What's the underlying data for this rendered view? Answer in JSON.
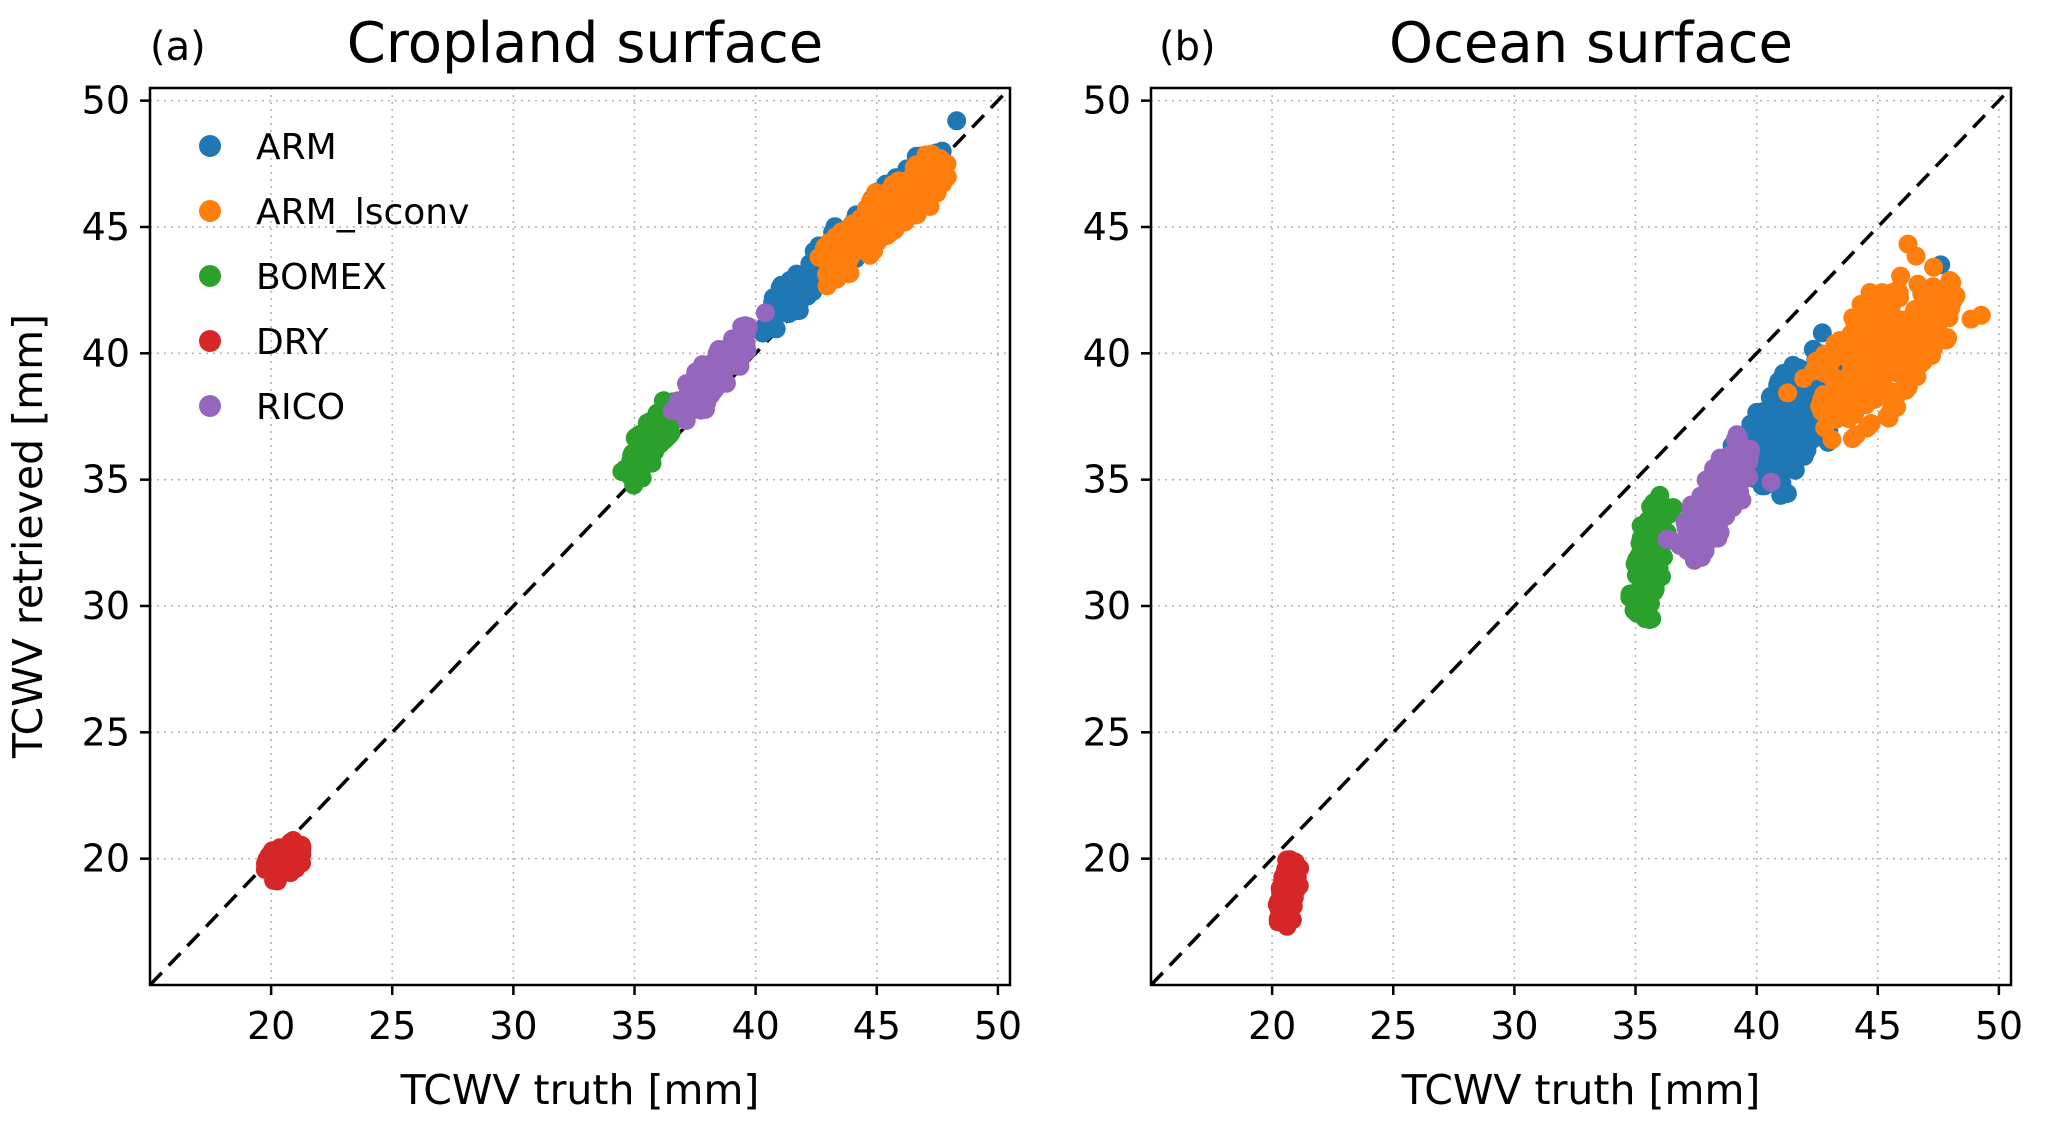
{
  "chart_data": [
    {
      "type": "scatter",
      "panel_label": "(a)",
      "title": "Cropland surface",
      "xlabel": "TCWV truth [mm]",
      "ylabel": "TCWV retrieved [mm]",
      "xlim": [
        15,
        50.5
      ],
      "ylim": [
        15,
        50.5
      ],
      "xticks": [
        20,
        25,
        30,
        35,
        40,
        45,
        50
      ],
      "yticks": [
        20,
        25,
        30,
        35,
        40,
        45,
        50
      ],
      "grid": "dotted",
      "identity_line": true,
      "legend": {
        "visible": true,
        "position": "upper left"
      },
      "series": [
        {
          "name": "ARM",
          "color": "#1f77b4",
          "clusters": [
            {
              "n": 130,
              "cx": 42.5,
              "cy": 43.2,
              "sx": 1.3,
              "sy": 0.33,
              "rot": 45
            },
            {
              "n": 90,
              "cx": 45.8,
              "cy": 46.3,
              "sx": 1.1,
              "sy": 0.3,
              "rot": 45
            }
          ],
          "points": [
            [
              48.3,
              49.2
            ],
            [
              47.7,
              48.0
            ],
            [
              40.3,
              40.8
            ]
          ]
        },
        {
          "name": "ARM_lsconv",
          "color": "#ff7f0e",
          "clusters": [
            {
              "n": 260,
              "cx": 45.3,
              "cy": 45.4,
              "sx": 1.5,
              "sy": 0.42,
              "rot": 40
            }
          ],
          "points": [
            [
              47.9,
              47.5
            ]
          ]
        },
        {
          "name": "BOMEX",
          "color": "#2ca02c",
          "clusters": [
            {
              "n": 170,
              "cx": 35.7,
              "cy": 36.6,
              "sx": 0.85,
              "sy": 0.25,
              "rot": 58
            }
          ],
          "points": []
        },
        {
          "name": "DRY",
          "color": "#d62728",
          "clusters": [
            {
              "n": 110,
              "cx": 20.6,
              "cy": 20.0,
              "sx": 0.4,
              "sy": 0.25,
              "rot": 35
            }
          ],
          "points": []
        },
        {
          "name": "RICO",
          "color": "#9467bd",
          "clusters": [
            {
              "n": 170,
              "cx": 38.3,
              "cy": 39.2,
              "sx": 1.0,
              "sy": 0.28,
              "rot": 50
            }
          ],
          "points": [
            [
              40.4,
              41.6
            ]
          ]
        }
      ]
    },
    {
      "type": "scatter",
      "panel_label": "(b)",
      "title": "Ocean surface",
      "xlabel": "TCWV truth [mm]",
      "ylabel": "",
      "xlim": [
        15,
        50.5
      ],
      "ylim": [
        15,
        50.5
      ],
      "xticks": [
        20,
        25,
        30,
        35,
        40,
        45,
        50
      ],
      "yticks": [
        20,
        25,
        30,
        35,
        40,
        45,
        50
      ],
      "grid": "dotted",
      "identity_line": true,
      "legend": {
        "visible": false,
        "position": ""
      },
      "series": [
        {
          "name": "ARM",
          "color": "#1f77b4",
          "clusters": [
            {
              "n": 200,
              "cx": 41.7,
              "cy": 37.5,
              "sx": 1.6,
              "sy": 0.7,
              "rot": 55
            }
          ],
          "points": [
            [
              47.6,
              43.5
            ]
          ]
        },
        {
          "name": "ARM_lsconv",
          "color": "#ff7f0e",
          "clusters": [
            {
              "n": 300,
              "cx": 45.3,
              "cy": 40.0,
              "sx": 1.7,
              "sy": 0.9,
              "rot": 50
            }
          ],
          "points": [
            [
              42.6,
              37.9
            ],
            [
              47.3,
              40.2
            ]
          ]
        },
        {
          "name": "BOMEX",
          "color": "#2ca02c",
          "clusters": [
            {
              "n": 160,
              "cx": 35.6,
              "cy": 32.0,
              "sx": 1.15,
              "sy": 0.3,
              "rot": 80
            }
          ],
          "points": [
            [
              35.4,
              29.5
            ]
          ]
        },
        {
          "name": "DRY",
          "color": "#d62728",
          "clusters": [
            {
              "n": 100,
              "cx": 20.7,
              "cy": 18.8,
              "sx": 0.65,
              "sy": 0.18,
              "rot": 80
            }
          ],
          "points": []
        },
        {
          "name": "RICO",
          "color": "#9467bd",
          "clusters": [
            {
              "n": 200,
              "cx": 38.3,
              "cy": 34.2,
              "sx": 1.15,
              "sy": 0.4,
              "rot": 58
            }
          ],
          "points": [
            [
              40.6,
              34.9
            ]
          ]
        }
      ]
    }
  ]
}
